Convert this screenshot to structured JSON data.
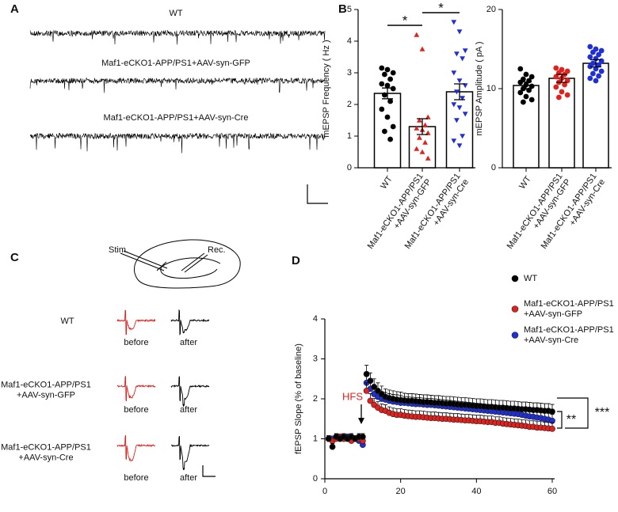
{
  "panel_labels": [
    "A",
    "B",
    "C",
    "D"
  ],
  "panel_a": {
    "traces": [
      "WT",
      "Maf1-eCKO1-APP/PS1+AAV-syn-GFP",
      "Maf1-eCKO1-APP/PS1+AAV-syn-Cre"
    ]
  },
  "panel_c": {
    "stim": "Stim.",
    "rec": "Rec.",
    "rows": [
      {
        "name": "WT",
        "before": "before",
        "after": "after"
      },
      {
        "name": "Maf1-eCKO1-APP/PS1\n+AAV-syn-GFP",
        "before": "before",
        "after": "after"
      },
      {
        "name": "Maf1-eCKO1-APP/PS1\n+AAV-syn-Cre",
        "before": "before",
        "after": "after"
      }
    ]
  },
  "chart_data": [
    {
      "type": "bar",
      "y_label": "mEPSP Frequency ( Hz )",
      "categories": [
        "WT",
        "Maf1-eCKO1-APP/PS1\n+AAV-syn-GFP",
        "Maf1-eCKO1-APP/PS1\n+AAV-syn-Cre"
      ],
      "values": [
        2.35,
        1.3,
        2.4
      ],
      "errors": [
        0.17,
        0.25,
        0.25
      ],
      "colors": [
        "#000000",
        "#e3211c",
        "#1f2fd6"
      ],
      "markers": [
        "circle",
        "triangle",
        "triangle-down"
      ],
      "points": [
        [
          3.15,
          3.1,
          3.0,
          2.95,
          2.8,
          2.65,
          2.6,
          2.5,
          2.3,
          2.1,
          1.85,
          1.6,
          1.3,
          1.15,
          0.9
        ],
        [
          4.2,
          3.75,
          1.6,
          1.5,
          1.35,
          1.25,
          1.2,
          1.1,
          0.95,
          0.8,
          0.6,
          0.5,
          0.3
        ],
        [
          4.6,
          4.3,
          3.7,
          3.6,
          3.45,
          3.0,
          2.75,
          2.6,
          2.4,
          2.2,
          2.0,
          1.9,
          1.7,
          1.5,
          1.0,
          0.85,
          0.7
        ]
      ],
      "ylim": [
        0,
        5
      ],
      "yticks": [
        0,
        1,
        2,
        3,
        4,
        5
      ],
      "annotations": [
        "*",
        "*"
      ]
    },
    {
      "type": "bar",
      "y_label": "mEPSP Amplitude ( pA )",
      "categories": [
        "WT",
        "Maf1-eCKO1-APP/PS1\n+AAV-syn-GFP",
        "Maf1-eCKO1-APP/PS1\n+AAV-syn-Cre"
      ],
      "values": [
        10.4,
        11.3,
        13.2
      ],
      "errors": [
        0.45,
        0.5,
        0.45
      ],
      "colors": [
        "#000000",
        "#e3211c",
        "#1f2fd6"
      ],
      "markers": [
        "circle",
        "circle",
        "circle"
      ],
      "points": [
        [
          12.5,
          11.8,
          11.5,
          11.2,
          11.0,
          10.8,
          10.5,
          10.3,
          10.0,
          9.8,
          9.5,
          9.0,
          8.6,
          8.3
        ],
        [
          12.6,
          12.4,
          12.2,
          12.0,
          11.8,
          11.5,
          11.3,
          11.0,
          10.8,
          10.5,
          10.2,
          9.6,
          9.2,
          8.9
        ],
        [
          15.3,
          15.0,
          14.8,
          14.6,
          14.3,
          14.0,
          13.8,
          13.5,
          13.2,
          13.0,
          12.8,
          12.5,
          12.2,
          11.9,
          11.6,
          11.3,
          11.0
        ]
      ],
      "ylim": [
        0,
        20
      ],
      "yticks": [
        0,
        10,
        20
      ]
    },
    {
      "type": "scatter",
      "y_label": "fEPSP Slope (% of baseline)",
      "x": [
        1,
        2,
        3,
        4,
        5,
        6,
        7,
        8,
        9,
        10,
        11,
        12,
        13,
        14,
        15,
        16,
        17,
        18,
        19,
        20,
        21,
        22,
        23,
        24,
        25,
        26,
        27,
        28,
        29,
        30,
        31,
        32,
        33,
        34,
        35,
        36,
        37,
        38,
        39,
        40,
        41,
        42,
        43,
        44,
        45,
        46,
        47,
        48,
        49,
        50,
        51,
        52,
        53,
        54,
        55,
        56,
        57,
        58,
        59,
        60
      ],
      "series": [
        {
          "name": "WT",
          "color": "#000000",
          "values": [
            1.0,
            0.8,
            1.05,
            1.0,
            1.05,
            1.0,
            1.05,
            1.0,
            1.05,
            1.05,
            2.62,
            2.45,
            2.3,
            2.2,
            2.12,
            2.05,
            2.02,
            2.0,
            1.98,
            1.97,
            1.96,
            1.95,
            1.95,
            1.94,
            1.93,
            1.92,
            1.92,
            1.91,
            1.9,
            1.9,
            1.89,
            1.88,
            1.88,
            1.87,
            1.86,
            1.85,
            1.85,
            1.84,
            1.83,
            1.82,
            1.82,
            1.81,
            1.8,
            1.8,
            1.79,
            1.78,
            1.78,
            1.77,
            1.76,
            1.76,
            1.75,
            1.74,
            1.74,
            1.73,
            1.72,
            1.72,
            1.71,
            1.7,
            1.7,
            1.68
          ],
          "errors": [
            0.08,
            0.08,
            0.08,
            0.08,
            0.08,
            0.08,
            0.08,
            0.08,
            0.08,
            0.08,
            0.22,
            0.2,
            0.2,
            0.2,
            0.2,
            0.2,
            0.2,
            0.2,
            0.2,
            0.2,
            0.18,
            0.18,
            0.18,
            0.18,
            0.18,
            0.18,
            0.18,
            0.18,
            0.18,
            0.18,
            0.18,
            0.18,
            0.18,
            0.18,
            0.18,
            0.18,
            0.18,
            0.18,
            0.18,
            0.18,
            0.18,
            0.18,
            0.18,
            0.18,
            0.18,
            0.18,
            0.18,
            0.18,
            0.18,
            0.18,
            0.18,
            0.18,
            0.18,
            0.18,
            0.18,
            0.18,
            0.18,
            0.18,
            0.18,
            0.18
          ]
        },
        {
          "name": "Maf1-eCKO1-APP/PS1\n+AAV-syn-GFP",
          "color": "#e3211c",
          "values": [
            1.0,
            0.95,
            1.0,
            1.05,
            1.0,
            1.0,
            0.95,
            1.0,
            1.0,
            0.95,
            2.2,
            1.95,
            1.85,
            1.78,
            1.72,
            1.7,
            1.65,
            1.62,
            1.6,
            1.6,
            1.58,
            1.57,
            1.56,
            1.55,
            1.55,
            1.54,
            1.53,
            1.52,
            1.52,
            1.51,
            1.5,
            1.5,
            1.49,
            1.48,
            1.48,
            1.47,
            1.46,
            1.46,
            1.45,
            1.44,
            1.44,
            1.43,
            1.42,
            1.42,
            1.4,
            1.4,
            1.38,
            1.37,
            1.36,
            1.35,
            1.34,
            1.33,
            1.32,
            1.3,
            1.3,
            1.28,
            1.28,
            1.27,
            1.26,
            1.25
          ],
          "errors": [
            0.07,
            0.07,
            0.07,
            0.07,
            0.07,
            0.07,
            0.07,
            0.07,
            0.07,
            0.07,
            0.2,
            0.18,
            0.16,
            0.15,
            0.15,
            0.15,
            0.15,
            0.15,
            0.15,
            0.15,
            0.15,
            0.15,
            0.15,
            0.15,
            0.15,
            0.15,
            0.15,
            0.15,
            0.15,
            0.15,
            0.15,
            0.15,
            0.15,
            0.15,
            0.15,
            0.15,
            0.15,
            0.15,
            0.15,
            0.15,
            0.15,
            0.15,
            0.15,
            0.15,
            0.15,
            0.15,
            0.15,
            0.15,
            0.15,
            0.15,
            0.15,
            0.15,
            0.15,
            0.15,
            0.15,
            0.15,
            0.15,
            0.15,
            0.15,
            0.15
          ]
        },
        {
          "name": "Maf1-eCKO1-APP/PS1\n+AAV-syn-Cre",
          "color": "#1f2fd6",
          "values": [
            1.0,
            1.0,
            1.05,
            1.0,
            1.0,
            1.05,
            1.0,
            1.0,
            0.95,
            0.85,
            2.4,
            2.25,
            2.12,
            2.05,
            2.0,
            1.98,
            1.95,
            1.93,
            1.92,
            1.9,
            1.9,
            1.89,
            1.88,
            1.87,
            1.87,
            1.86,
            1.85,
            1.85,
            1.84,
            1.83,
            1.82,
            1.81,
            1.8,
            1.79,
            1.78,
            1.77,
            1.76,
            1.75,
            1.74,
            1.73,
            1.72,
            1.71,
            1.7,
            1.69,
            1.68,
            1.67,
            1.66,
            1.65,
            1.64,
            1.63,
            1.62,
            1.6,
            1.58,
            1.56,
            1.55,
            1.53,
            1.52,
            1.5,
            1.48,
            1.45
          ],
          "errors": [
            0.07,
            0.07,
            0.07,
            0.07,
            0.07,
            0.07,
            0.07,
            0.07,
            0.07,
            0.07,
            0.2,
            0.18,
            0.18,
            0.18,
            0.18,
            0.18,
            0.18,
            0.18,
            0.18,
            0.18,
            0.16,
            0.16,
            0.16,
            0.16,
            0.16,
            0.16,
            0.16,
            0.16,
            0.16,
            0.16,
            0.16,
            0.16,
            0.16,
            0.16,
            0.16,
            0.16,
            0.16,
            0.16,
            0.16,
            0.16,
            0.16,
            0.16,
            0.16,
            0.16,
            0.16,
            0.16,
            0.16,
            0.16,
            0.16,
            0.16,
            0.16,
            0.16,
            0.16,
            0.16,
            0.16,
            0.16,
            0.16,
            0.16,
            0.16,
            0.16
          ]
        }
      ],
      "xlim": [
        0,
        60
      ],
      "xticks": [
        0,
        20,
        40,
        60
      ],
      "ylim": [
        0,
        4
      ],
      "yticks": [
        0,
        1,
        2,
        3,
        4
      ],
      "legend": "top-right",
      "annotations": [
        "HFS",
        "**",
        "***"
      ]
    }
  ]
}
